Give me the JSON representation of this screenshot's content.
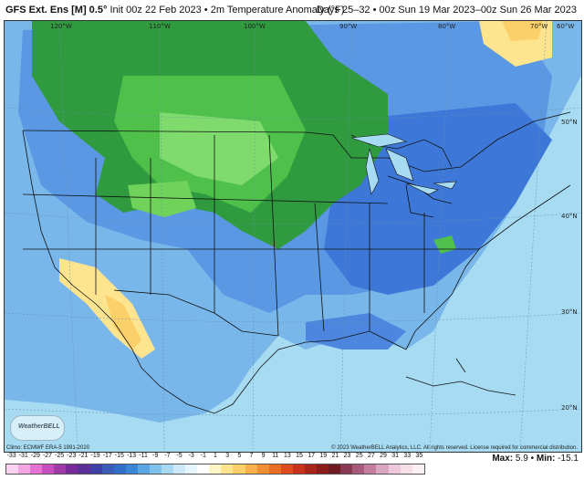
{
  "header": {
    "model": "GFS Ext. Ens [M] 0.5",
    "degree_mark": "°",
    "init": "Init 00z 22 Feb 2023",
    "separator": "•",
    "field": "2m Temperature Anomaly (°F)",
    "valid": "Days 25–32 • 00z Sun 19 Mar 2023–00z Sun 26 Mar 2023"
  },
  "graticule": {
    "longitudes": [
      "120°W",
      "110°W",
      "100°W",
      "90°W",
      "80°W",
      "70°W",
      "60°W"
    ],
    "latitudes": [
      "50°N",
      "40°N",
      "30°N",
      "20°N"
    ]
  },
  "credits": {
    "climo": "Climo: ECMWF ERA-5 1991-2020",
    "copyright": "© 2023 WeatherBELL Analytics, LLC. All rights reserved. License required for commercial distribution.",
    "logo": "WeatherBELL"
  },
  "stats": {
    "max_label": "Max:",
    "max_value": "5.9",
    "min_label": "Min:",
    "min_value": "-15.1"
  },
  "colorbar": {
    "labels": [
      "-33",
      "-31",
      "-29",
      "-27",
      "-25",
      "-23",
      "-21",
      "-19",
      "-17",
      "-15",
      "-13",
      "-11",
      "-9",
      "-7",
      "-5",
      "-3",
      "-1",
      "1",
      "3",
      "5",
      "7",
      "9",
      "11",
      "13",
      "15",
      "17",
      "19",
      "21",
      "23",
      "25",
      "27",
      "29",
      "31",
      "33",
      "35"
    ],
    "colors": [
      "#fbd3f0",
      "#f3a6e2",
      "#e673d3",
      "#c94fc0",
      "#a03aa8",
      "#7a2a98",
      "#5a2f96",
      "#3f3fa8",
      "#3c5ab8",
      "#2f6fc8",
      "#3a86d6",
      "#5aa6e2",
      "#7fc2ec",
      "#a8d9f3",
      "#cde9f7",
      "#e6f4fb",
      "#ffffff",
      "#fff6c8",
      "#fde58f",
      "#fbcf6a",
      "#f8b04a",
      "#f28f32",
      "#ea6d24",
      "#de4b1c",
      "#c8321a",
      "#a8241a",
      "#8a1c1c",
      "#701a22",
      "#8a3a52",
      "#a85a7a",
      "#c47fa0",
      "#dba6c2",
      "#ecc8da",
      "#f5e0ea",
      "#faf0f5"
    ]
  }
}
